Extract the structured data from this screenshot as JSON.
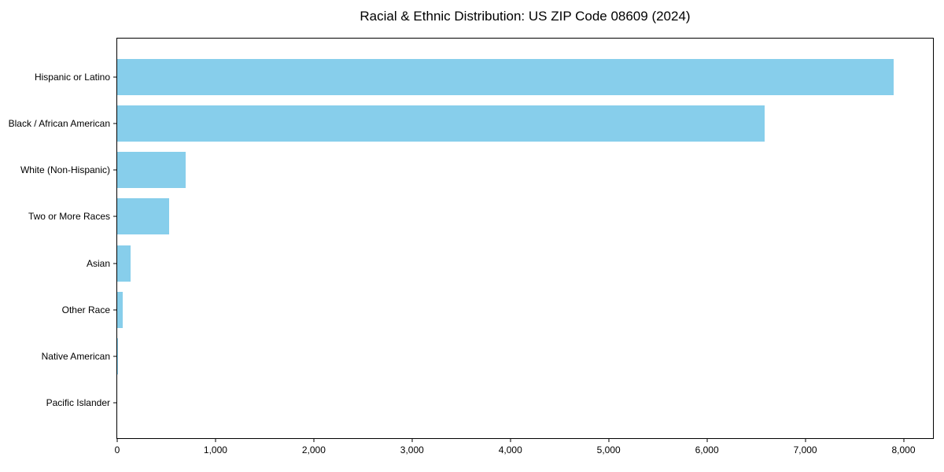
{
  "chart_data": {
    "type": "bar",
    "orientation": "horizontal",
    "title": "Racial & Ethnic Distribution: US ZIP Code 08609 (2024)",
    "categories": [
      "Hispanic or Latino",
      "Black / African American",
      "White (Non-Hispanic)",
      "Two or More Races",
      "Asian",
      "Other Race",
      "Native American",
      "Pacific Islander"
    ],
    "values": [
      7900,
      6590,
      700,
      530,
      140,
      60,
      10,
      0
    ],
    "xlabel": "",
    "ylabel": "",
    "xlim": [
      0,
      8300
    ],
    "x_ticks": [
      0,
      1000,
      2000,
      3000,
      4000,
      5000,
      6000,
      7000,
      8000
    ],
    "x_tick_labels": [
      "0",
      "1,000",
      "2,000",
      "3,000",
      "4,000",
      "5,000",
      "6,000",
      "7,000",
      "8,000"
    ],
    "bar_color": "#87CEEB",
    "background_color": "#FFFFFF",
    "spine_color": "#000000",
    "text_color": "#000000",
    "grid": false,
    "legend_position": "none"
  }
}
